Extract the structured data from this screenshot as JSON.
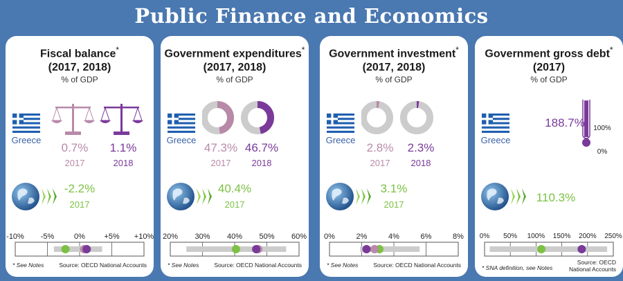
{
  "title": "Public Finance and Economics",
  "colors": {
    "background": "#4a78b0",
    "year_2017": "#b88aa8",
    "year_2018": "#7a3a9a",
    "oecd": "#7cc143",
    "bar": "#cccccc"
  },
  "chart_data": [
    {
      "type": "table",
      "title_main": "Fiscal balance",
      "title_star": "*",
      "title_years": "(2017, 2018)",
      "subtitle": "% of GDP",
      "country": "Greece",
      "greece": [
        {
          "year": "2017",
          "value": 0.7,
          "label": "0.7%"
        },
        {
          "year": "2018",
          "value": 1.1,
          "label": "1.1%"
        }
      ],
      "oecd": {
        "year": "2017",
        "value": -2.2,
        "label": "-2.2%"
      },
      "scale": {
        "min": -10,
        "max": 10,
        "ticks": [
          -10,
          -5,
          0,
          5,
          10
        ],
        "tick_labels": [
          "-10%",
          "-5%",
          "0%",
          "+5%",
          "+10%"
        ],
        "range": [
          -4,
          3.5
        ]
      },
      "note": "* See Notes",
      "source": "Source: OECD National Accounts"
    },
    {
      "type": "pie",
      "title_main": "Government expenditures",
      "title_star": "*",
      "title_years": "(2017, 2018)",
      "subtitle": "% of GDP",
      "country": "Greece",
      "greece": [
        {
          "year": "2017",
          "value": 47.3,
          "label": "47.3%"
        },
        {
          "year": "2018",
          "value": 46.7,
          "label": "46.7%"
        }
      ],
      "oecd": {
        "year": "2017",
        "value": 40.4,
        "label": "40.4%"
      },
      "scale": {
        "min": 20,
        "max": 60,
        "ticks": [
          20,
          30,
          40,
          50,
          60
        ],
        "tick_labels": [
          "20%",
          "30%",
          "40%",
          "50%",
          "60%"
        ],
        "range": [
          25,
          56
        ]
      },
      "note": "* See Notes",
      "source": "Source: OECD National Accounts"
    },
    {
      "type": "pie",
      "title_main": "Government investment",
      "title_star": "*",
      "title_years": "(2017, 2018)",
      "subtitle": "% of GDP",
      "country": "Greece",
      "greece": [
        {
          "year": "2017",
          "value": 2.8,
          "label": "2.8%"
        },
        {
          "year": "2018",
          "value": 2.3,
          "label": "2.3%"
        }
      ],
      "oecd": {
        "year": "2017",
        "value": 3.1,
        "label": "3.1%"
      },
      "scale": {
        "min": 0,
        "max": 8,
        "ticks": [
          0,
          2,
          4,
          6,
          8
        ],
        "tick_labels": [
          "0%",
          "2%",
          "4%",
          "6%",
          "8%"
        ],
        "range": [
          1.9,
          5.6
        ]
      },
      "note": "* See Notes",
      "source": "Source: OECD National Accounts"
    },
    {
      "type": "bar",
      "title_main": "Government gross debt",
      "title_star": "*",
      "title_years": "(2017)",
      "subtitle": "% of GDP",
      "country": "Greece",
      "greece": [
        {
          "year": "2017",
          "value": 188.7,
          "label": "188.7%"
        }
      ],
      "thermo_labels": [
        "100%",
        "0%"
      ],
      "oecd": {
        "year": "",
        "value": 110.3,
        "label": "110.3%"
      },
      "scale": {
        "min": 0,
        "max": 250,
        "ticks": [
          0,
          50,
          100,
          150,
          200,
          250
        ],
        "tick_labels": [
          "0%",
          "50%",
          "100%",
          "150%",
          "200%",
          "250%"
        ],
        "range": [
          10,
          238
        ]
      },
      "note": "* SNA definition, see Notes",
      "source": "Source: OECD National Accounts"
    }
  ]
}
